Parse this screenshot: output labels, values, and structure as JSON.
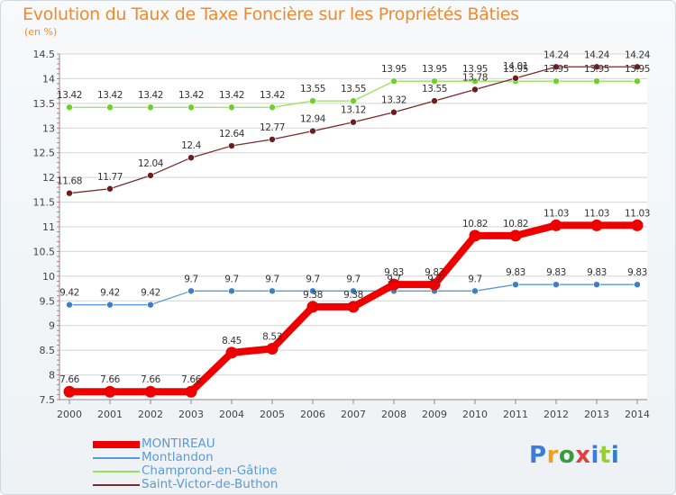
{
  "title": "Evolution du Taux de Taxe Foncière sur les Propriétés Bâties",
  "unit_label": "(en %)",
  "logo_text": "Proxiti",
  "chart_data": {
    "type": "line",
    "title": "Evolution du Taux de Taxe Foncière sur les Propriétés Bâties",
    "ylabel": "(en %)",
    "xlabel": "",
    "ylim": [
      7.5,
      14.5
    ],
    "y_ticks": [
      "7.5",
      "8",
      "8.5",
      "9",
      "9.5",
      "10",
      "10.5",
      "11",
      "11.5",
      "12",
      "12.5",
      "13",
      "13.5",
      "14",
      "14.5"
    ],
    "categories": [
      "2000",
      "2001",
      "2002",
      "2003",
      "2004",
      "2005",
      "2006",
      "2007",
      "2008",
      "2009",
      "2010",
      "2011",
      "2012",
      "2013",
      "2014"
    ],
    "series": [
      {
        "name": "MONTIREAU",
        "color": "#ee0000",
        "marker": "#ee0000",
        "values": [
          7.66,
          7.66,
          7.66,
          7.66,
          8.45,
          8.53,
          9.38,
          9.38,
          9.83,
          9.83,
          10.82,
          10.82,
          11.03,
          11.03,
          11.03
        ],
        "labels": [
          "7.66",
          "7.66",
          "7.66",
          "7.66",
          "8.45",
          "8.53",
          "9.38",
          "9.38",
          "9.83",
          "9.83",
          "10.82",
          "10.82",
          "11.03",
          "11.03",
          "11.03"
        ]
      },
      {
        "name": "Montlandon",
        "color": "#5b9bd5",
        "marker": "#3d7fc0",
        "values": [
          9.42,
          9.42,
          9.42,
          9.7,
          9.7,
          9.7,
          9.7,
          9.7,
          9.7,
          9.7,
          9.7,
          9.83,
          9.83,
          9.83,
          9.83
        ],
        "labels": [
          "9.42",
          "9.42",
          "9.42",
          "9.7",
          "9.7",
          "9.7",
          "9.7",
          "9.7",
          "9.7",
          "9.7",
          "9.7",
          "9.83",
          "9.83",
          "9.83",
          "9.83"
        ]
      },
      {
        "name": "Champrond-en-Gâtine",
        "color": "#99e05a",
        "marker": "#6ed12a",
        "values": [
          13.42,
          13.42,
          13.42,
          13.42,
          13.42,
          13.42,
          13.55,
          13.55,
          13.95,
          13.95,
          13.95,
          13.95,
          13.95,
          13.95,
          13.95
        ],
        "labels": [
          "13.42",
          "13.42",
          "13.42",
          "13.42",
          "13.42",
          "13.42",
          "13.55",
          "13.55",
          "13.95",
          "13.95",
          "13.95",
          "13.95",
          "13.95",
          "13.95",
          "13.95"
        ]
      },
      {
        "name": "Saint-Victor-de-Buthon",
        "color": "#7a2a2a",
        "marker": "#6b1e1e",
        "values": [
          11.68,
          11.77,
          12.04,
          12.4,
          12.64,
          12.77,
          12.94,
          13.12,
          13.32,
          13.55,
          13.78,
          14.01,
          14.24,
          14.24,
          14.24
        ],
        "labels": [
          "11.68",
          "11.77",
          "12.04",
          "12.4",
          "12.64",
          "12.77",
          "12.94",
          "13.12",
          "13.32",
          "13.55",
          "13.78",
          "14.01",
          "14.24",
          "14.24",
          "14.24"
        ]
      }
    ],
    "legend": [
      "MONTIREAU",
      "Montlandon",
      "Champrond-en-Gâtine",
      "Saint-Victor-de-Buthon"
    ],
    "legend_position": "bottom-left"
  }
}
